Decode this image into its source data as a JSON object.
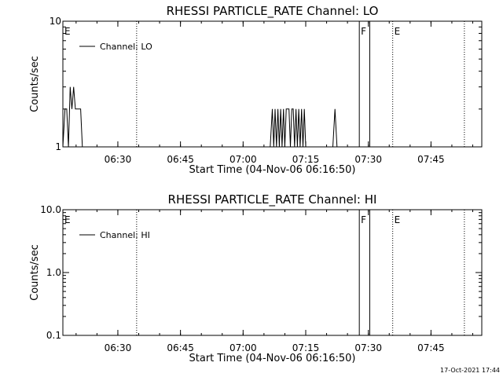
{
  "footer": {
    "timestamp": "17-Oct-2021 17:44"
  },
  "chart_data": [
    {
      "type": "line",
      "title": "RHESSI PARTICLE_RATE Channel: LO",
      "xlabel": "Start Time (04-Nov-06 06:16:50)",
      "ylabel": "Counts/sec",
      "yscale": "log",
      "ylim": [
        1,
        10
      ],
      "y_ticks": [
        {
          "value": 1,
          "label": "1"
        },
        {
          "value": 10,
          "label": "10"
        }
      ],
      "xlim": [
        "06:16:50",
        "07:57:10"
      ],
      "x_ticks": [
        "06:30",
        "06:45",
        "07:00",
        "07:15",
        "07:30",
        "07:45"
      ],
      "grid": false,
      "legend": {
        "position": "top-left",
        "entries": [
          "Channel: LO"
        ]
      },
      "markers": [
        {
          "time": "06:16:50",
          "label": "E",
          "style": "dotted"
        },
        {
          "time": "06:34:30",
          "label": "",
          "style": "dotted"
        },
        {
          "time": "07:27:50",
          "label": "F",
          "style": "solid"
        },
        {
          "time": "07:30:20",
          "label": "",
          "style": "solid"
        },
        {
          "time": "07:35:50",
          "label": "E",
          "style": "dotted"
        },
        {
          "time": "07:53:00",
          "label": "",
          "style": "dotted"
        }
      ],
      "series": [
        {
          "name": "Channel: LO",
          "x": [
            "06:16:50",
            "06:17:20",
            "06:17:45",
            "06:18:10",
            "06:18:35",
            "06:19:00",
            "06:19:25",
            "06:19:50",
            "06:20:15",
            "06:20:40",
            "06:21:05",
            "06:21:30",
            "06:22:00",
            "06:22:30",
            "07:06:30",
            "07:07:00",
            "07:07:20",
            "07:07:40",
            "07:08:00",
            "07:08:20",
            "07:08:40",
            "07:09:00",
            "07:09:20",
            "07:09:40",
            "07:10:00",
            "07:10:20",
            "07:10:40",
            "07:11:00",
            "07:11:20",
            "07:11:40",
            "07:12:00",
            "07:12:20",
            "07:12:40",
            "07:13:00",
            "07:13:20",
            "07:13:40",
            "07:14:00",
            "07:14:20",
            "07:14:40",
            "07:15:00",
            "07:21:30",
            "07:22:00",
            "07:22:30"
          ],
          "values": [
            1,
            2,
            2,
            1,
            3,
            2,
            3,
            2,
            2,
            2,
            2,
            1,
            1,
            1,
            1,
            2,
            1,
            2,
            1,
            2,
            1,
            2,
            1,
            2,
            1,
            2,
            2,
            2,
            1,
            2,
            2,
            1,
            2,
            1,
            2,
            1,
            2,
            1,
            2,
            1,
            1,
            2,
            1
          ]
        }
      ]
    },
    {
      "type": "line",
      "title": "RHESSI PARTICLE_RATE Channel: HI",
      "xlabel": "Start Time (04-Nov-06 06:16:50)",
      "ylabel": "Counts/sec",
      "yscale": "log",
      "ylim": [
        0.1,
        10
      ],
      "y_ticks": [
        {
          "value": 0.1,
          "label": "0.1"
        },
        {
          "value": 1,
          "label": "1.0"
        },
        {
          "value": 10,
          "label": "10.0"
        }
      ],
      "xlim": [
        "06:16:50",
        "07:57:10"
      ],
      "x_ticks": [
        "06:30",
        "06:45",
        "07:00",
        "07:15",
        "07:30",
        "07:45"
      ],
      "grid": false,
      "legend": {
        "position": "top-left",
        "entries": [
          "Channel: HI"
        ]
      },
      "markers": [
        {
          "time": "06:16:50",
          "label": "E",
          "style": "dotted"
        },
        {
          "time": "06:34:30",
          "label": "",
          "style": "dotted"
        },
        {
          "time": "07:27:50",
          "label": "F",
          "style": "solid"
        },
        {
          "time": "07:30:20",
          "label": "",
          "style": "solid"
        },
        {
          "time": "07:35:50",
          "label": "E",
          "style": "dotted"
        },
        {
          "time": "07:53:00",
          "label": "",
          "style": "dotted"
        }
      ],
      "series": [
        {
          "name": "Channel: HI",
          "x": [],
          "values": []
        }
      ]
    }
  ]
}
